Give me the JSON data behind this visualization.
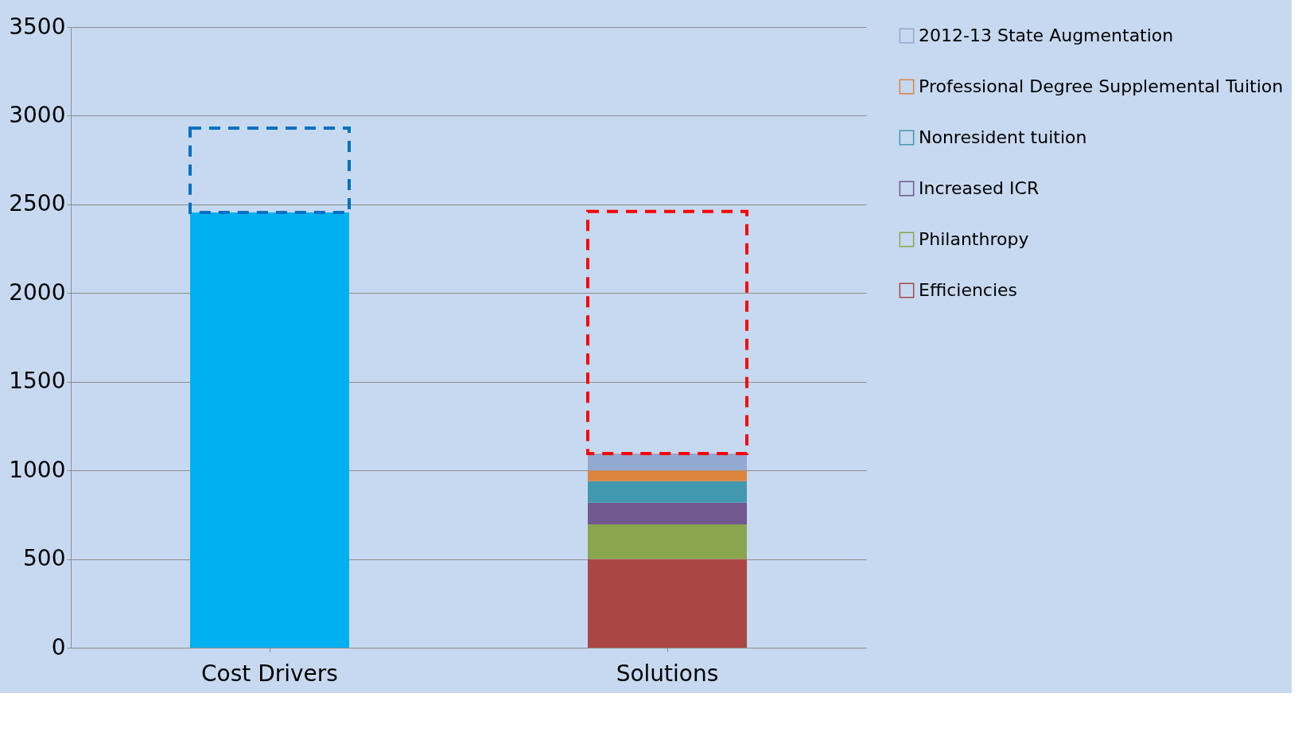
{
  "chart_data": {
    "type": "bar",
    "stacked": true,
    "categories": [
      "Cost Drivers",
      "Solutions"
    ],
    "series": [
      {
        "color": "#00b0f0",
        "values": [
          2455,
          null
        ]
      },
      {
        "name": "Efficiencies",
        "color": "#aa4744",
        "values": [
          null,
          500
        ]
      },
      {
        "name": "Philanthropy",
        "color": "#89a54e",
        "values": [
          null,
          195
        ]
      },
      {
        "name": "Increased ICR",
        "color": "#71588f",
        "values": [
          null,
          123
        ]
      },
      {
        "name": "Nonresident tuition",
        "color": "#4198af",
        "values": [
          null,
          121
        ]
      },
      {
        "name": "Professional Degree Supplemental Tuition",
        "color": "#db843d",
        "values": [
          null,
          61
        ]
      },
      {
        "name": "2012-13 State Augmentation",
        "color": "#93a9cf",
        "values": [
          null,
          95
        ]
      },
      {
        "colors": [
          "#0070c0",
          "#ff0000"
        ],
        "line_style": "dashed",
        "values": [
          475,
          1365
        ]
      }
    ],
    "ylim": [
      0,
      3500
    ],
    "yticks": [
      0,
      500,
      1000,
      1500,
      2000,
      2500,
      3000,
      3500
    ],
    "grid": "y",
    "legend": "right"
  }
}
